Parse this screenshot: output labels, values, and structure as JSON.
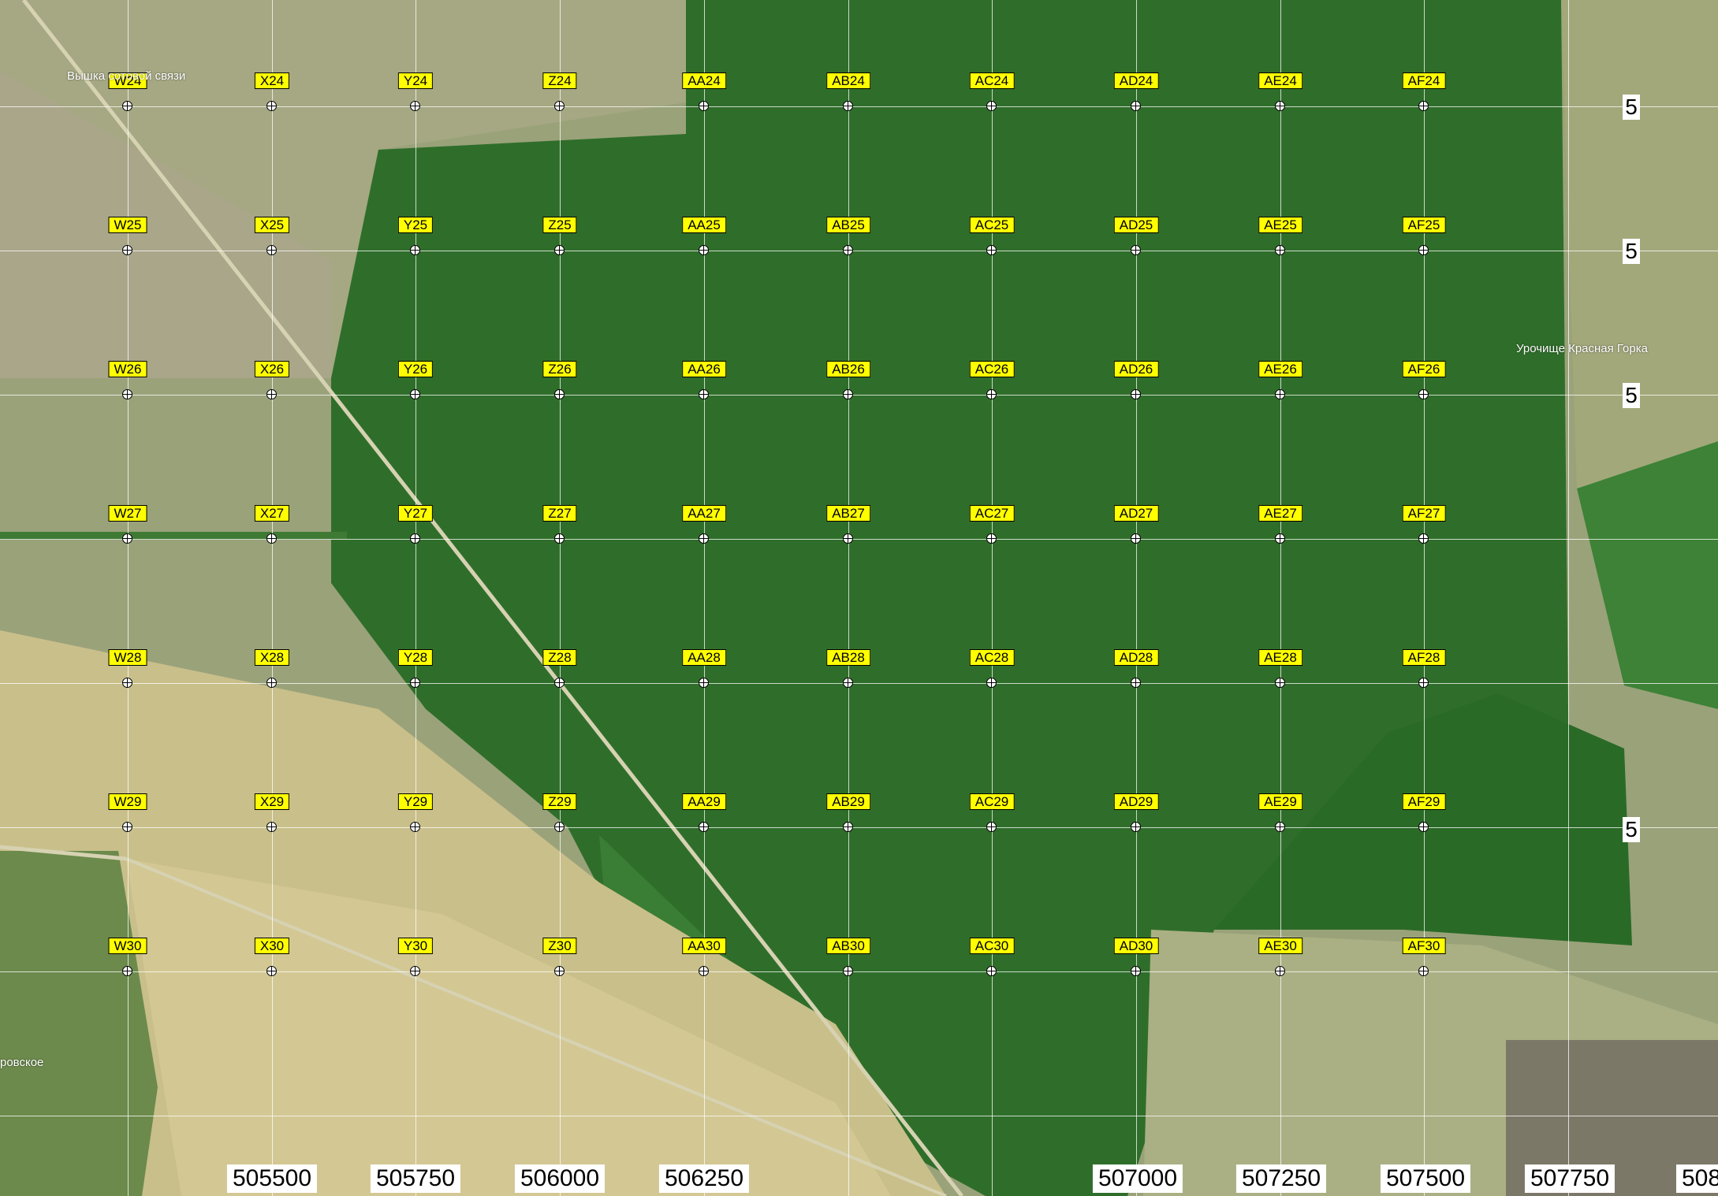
{
  "map": {
    "columns": [
      "W",
      "X",
      "Y",
      "Z",
      "AA",
      "AB",
      "AC",
      "AD",
      "AE",
      "AF"
    ],
    "rows": [
      "24",
      "25",
      "26",
      "27",
      "28",
      "29",
      "30"
    ],
    "eastings": [
      {
        "label": "505500",
        "clip": false
      },
      {
        "label": "505750",
        "clip": false
      },
      {
        "label": "506000",
        "clip": false
      },
      {
        "label": "506250",
        "clip": false
      },
      {
        "label": "507000",
        "clip": false
      },
      {
        "label": "507250",
        "clip": false
      },
      {
        "label": "507500",
        "clip": false
      },
      {
        "label": "507750",
        "clip": false
      },
      {
        "label": "508",
        "clip": true
      }
    ],
    "northings": [
      "5",
      "5",
      "5",
      "5"
    ],
    "places": {
      "tower": "Вышка сотовой связи",
      "krasnaya_gorka": "Урочище Красная Горка",
      "village": "ровское"
    },
    "colors": {
      "label_bg": "#ffff00",
      "forest": "#2f6e2a",
      "field_pale": "#c9bf8a",
      "field_grass": "#9aa27a"
    }
  }
}
